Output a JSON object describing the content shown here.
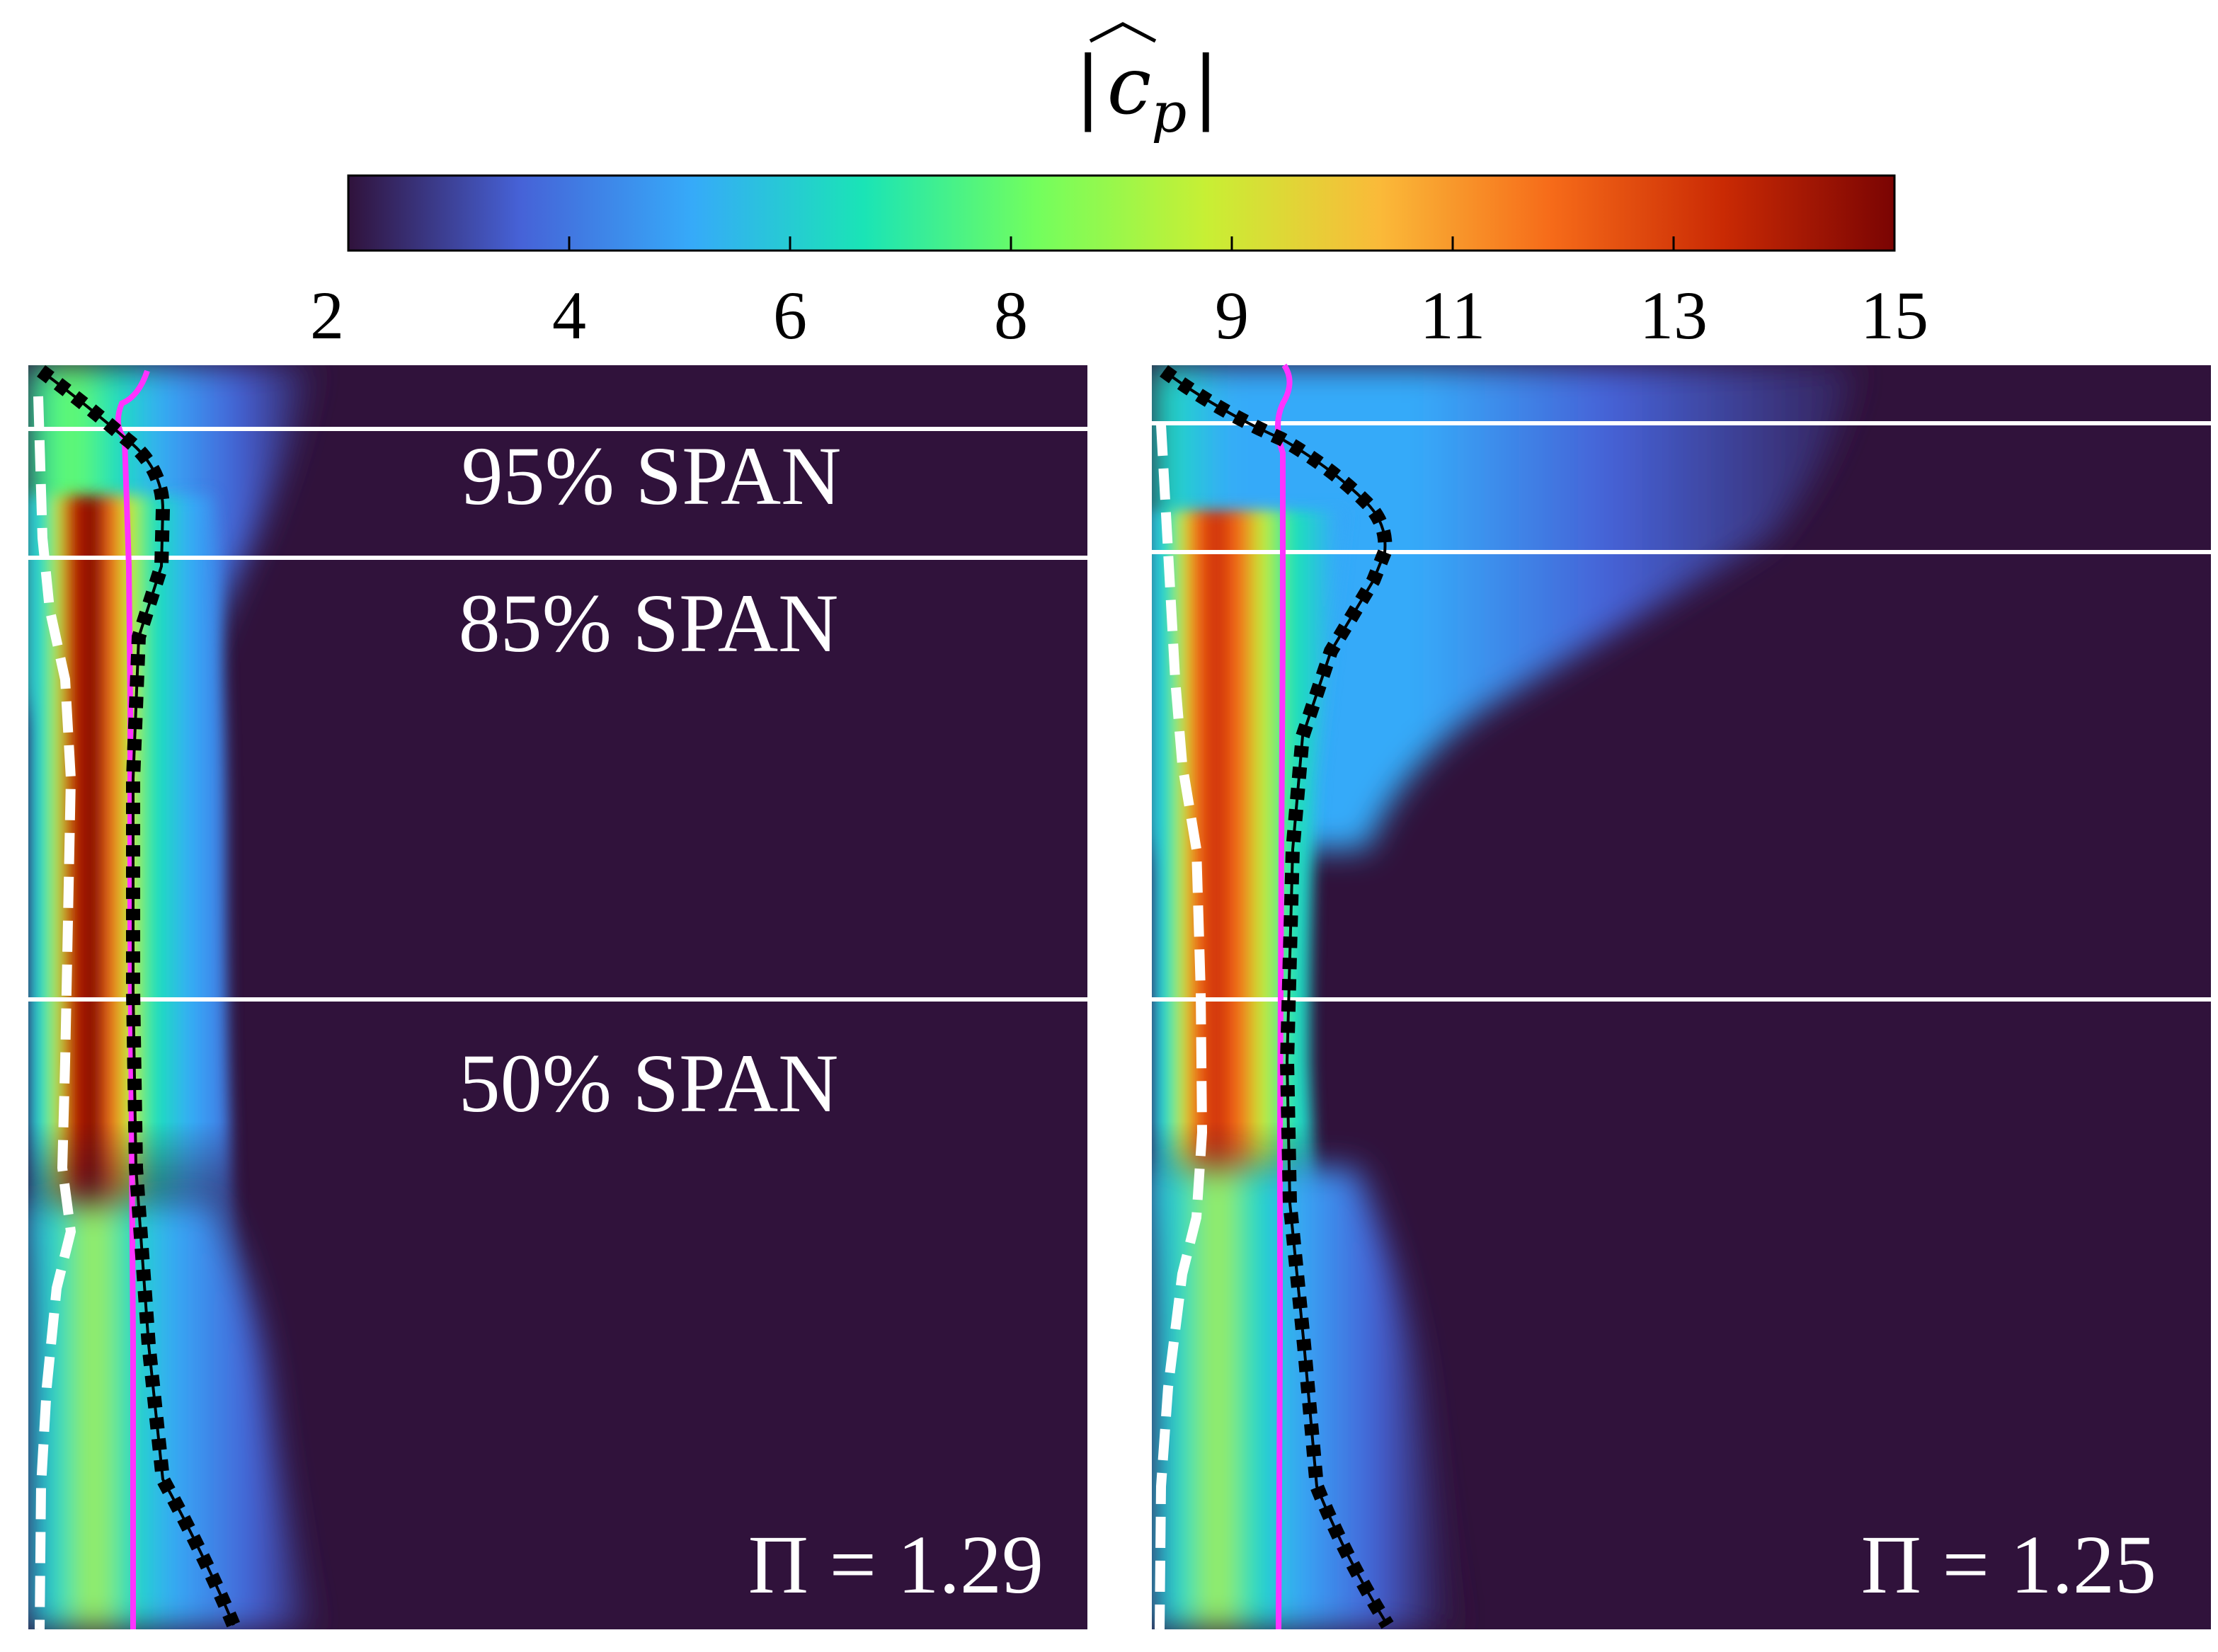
{
  "chart_data": {
    "type": "heatmap",
    "colorbar": {
      "title": "|ĉp|",
      "title_symbol": "c",
      "title_subscript": "p",
      "tick_labels": [
        "2",
        "4",
        "6",
        "8",
        "9",
        "11",
        "13",
        "15"
      ],
      "colormap": "turbo",
      "stops": [
        "#30123b",
        "#4662d7",
        "#36aaf9",
        "#1ae4b6",
        "#72fe5e",
        "#c8ef34",
        "#faba39",
        "#f66b19",
        "#ca2a04",
        "#7a0403"
      ]
    },
    "span_labels": [
      "95% SPAN",
      "85% SPAN",
      "50% SPAN"
    ],
    "panels": [
      {
        "name": "left",
        "label": "Π = 1.29",
        "pi": 1.29
      },
      {
        "name": "right",
        "label": "Π = 1.25",
        "pi": 1.25
      }
    ],
    "lines": {
      "contour": "black dotted",
      "mean": "magenta solid",
      "edge": "white dashed"
    },
    "colors": {
      "background": "#30123b",
      "magenta": "#ff33ff",
      "black": "#000000",
      "white": "#ffffff"
    }
  }
}
